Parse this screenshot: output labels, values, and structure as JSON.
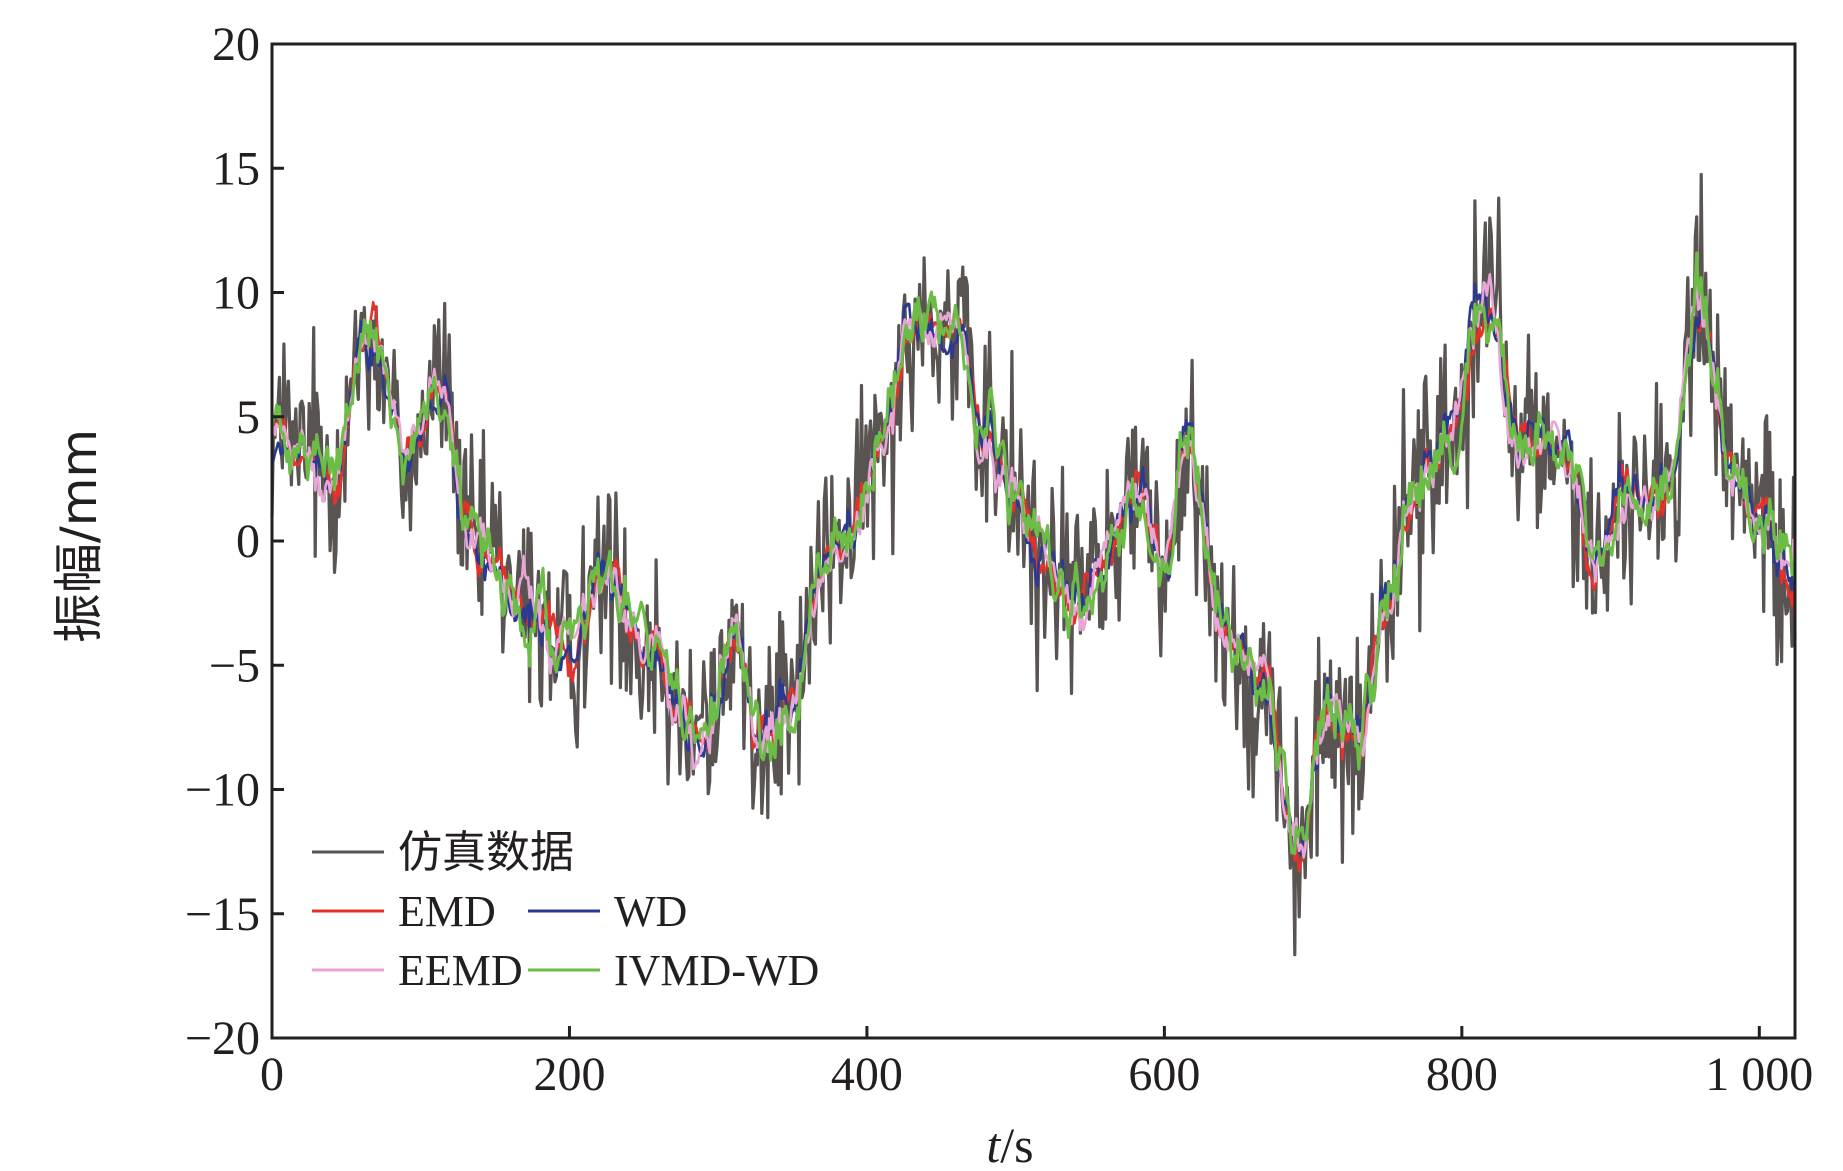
{
  "chart_data": {
    "type": "line",
    "title": "",
    "xlabel_var": "t",
    "xlabel_unit": "/s",
    "ylabel": "振幅/mm",
    "xlim": [
      0,
      1024
    ],
    "ylim": [
      -20,
      20
    ],
    "grid": false,
    "legend_position": "bottom-left",
    "x_tick_labels": [
      {
        "value": 0,
        "label": "0"
      },
      {
        "value": 200,
        "label": "200"
      },
      {
        "value": 400,
        "label": "400"
      },
      {
        "value": 600,
        "label": "600"
      },
      {
        "value": 800,
        "label": "800"
      },
      {
        "value": 1000,
        "label": "1 000"
      }
    ],
    "y_tick_labels": [
      {
        "value": 20,
        "label": "20"
      },
      {
        "value": 15,
        "label": "15"
      },
      {
        "value": 10,
        "label": "10"
      },
      {
        "value": 5,
        "label": "5"
      },
      {
        "value": 0,
        "label": "0"
      },
      {
        "value": -5,
        "label": "−5"
      },
      {
        "value": -10,
        "label": "−10"
      },
      {
        "value": -15,
        "label": "−15"
      },
      {
        "value": -20,
        "label": "−20"
      }
    ],
    "trend_x": [
      0,
      20,
      40,
      65,
      90,
      115,
      130,
      150,
      175,
      200,
      225,
      250,
      290,
      310,
      330,
      350,
      370,
      390,
      410,
      430,
      460,
      480,
      500,
      520,
      540,
      560,
      580,
      600,
      615,
      640,
      665,
      690,
      710,
      730,
      750,
      770,
      790,
      815,
      840,
      870,
      890,
      910,
      935,
      960,
      985,
      1000,
      1024
    ],
    "trend_y": [
      4.5,
      3.5,
      3.0,
      8.5,
      3.5,
      6.5,
      0.5,
      -1.0,
      -3.0,
      -4.5,
      -1.0,
      -4.0,
      -8.0,
      -4.0,
      -8.0,
      -6.5,
      -1.0,
      0.5,
      4.0,
      9.0,
      8.5,
      4.0,
      2.0,
      -0.5,
      -2.5,
      -1.0,
      2.0,
      -1.0,
      4.0,
      -3.5,
      -5.5,
      -12.5,
      -7.0,
      -8.0,
      -2.5,
      2.5,
      4.0,
      9.5,
      4.0,
      3.5,
      -1.0,
      2.0,
      1.5,
      9.0,
      2.0,
      1.0,
      -2.0
    ],
    "noise_amplitude": 3.2,
    "sample_count": 1024,
    "series": [
      {
        "name": "仿真数据",
        "color": "#595451",
        "kind": "raw",
        "stroke_width": 3.2
      },
      {
        "name": "EMD",
        "color": "#e8302a",
        "kind": "denoised",
        "stroke_width": 2.6
      },
      {
        "name": "WD",
        "color": "#2b3990",
        "kind": "denoised",
        "stroke_width": 2.6
      },
      {
        "name": "EEMD",
        "color": "#e7a6d6",
        "kind": "denoised",
        "stroke_width": 2.6
      },
      {
        "name": "IVMD-WD",
        "color": "#6cbd45",
        "kind": "denoised",
        "stroke_width": 3.0
      }
    ],
    "legend": {
      "rows": [
        [
          "仿真数据"
        ],
        [
          "EMD",
          "WD"
        ],
        [
          "EEMD",
          "IVMD-WD"
        ]
      ]
    }
  }
}
